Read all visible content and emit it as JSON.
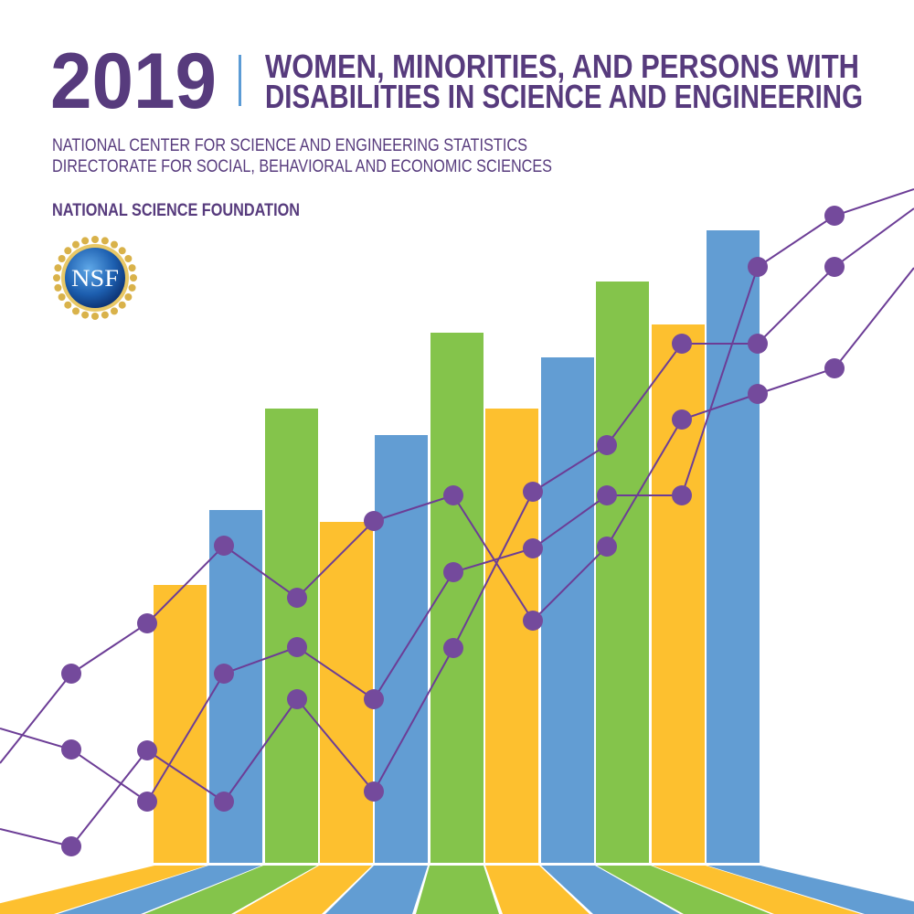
{
  "cover": {
    "year": "2019",
    "title_line1": "WOMEN, MINORITIES, AND PERSONS WITH",
    "title_line2": "DISABILITIES IN SCIENCE AND ENGINEERING",
    "subtitle_line1": "NATIONAL CENTER FOR SCIENCE AND ENGINEERING STATISTICS",
    "subtitle_line2": "DIRECTORATE FOR SOCIAL, BEHAVIORAL AND ECONOMIC SCIENCES",
    "organization": "NATIONAL SCIENCE FOUNDATION",
    "logo_text": "NSF"
  },
  "colors": {
    "title_purple": "#573b7d",
    "divider_blue": "#5b9bd5",
    "yellow": "#fdc02f",
    "blue": "#629dd3",
    "green": "#84c44b",
    "line_purple": "#6c3d96",
    "dot_purple": "#744a9c"
  },
  "graphic": {
    "bar_color_sequence": [
      "yellow",
      "blue",
      "green",
      "yellow",
      "blue",
      "green",
      "yellow",
      "blue",
      "green",
      "yellow",
      "blue"
    ]
  }
}
